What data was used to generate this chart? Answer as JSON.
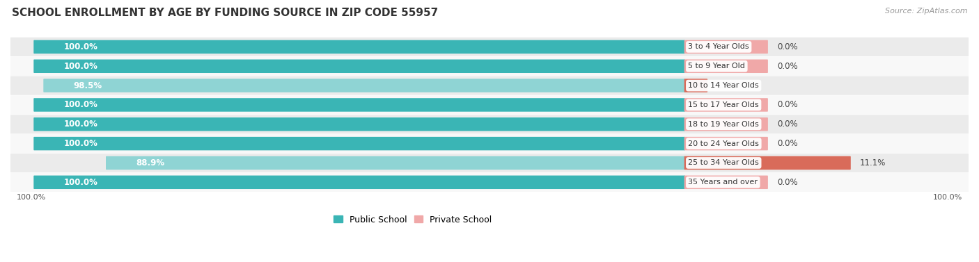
{
  "title": "SCHOOL ENROLLMENT BY AGE BY FUNDING SOURCE IN ZIP CODE 55957",
  "source": "Source: ZipAtlas.com",
  "categories": [
    "3 to 4 Year Olds",
    "5 to 9 Year Old",
    "10 to 14 Year Olds",
    "15 to 17 Year Olds",
    "18 to 19 Year Olds",
    "20 to 24 Year Olds",
    "25 to 34 Year Olds",
    "35 Years and over"
  ],
  "public_pct": [
    100.0,
    100.0,
    98.5,
    100.0,
    100.0,
    100.0,
    88.9,
    100.0
  ],
  "private_pct": [
    0.0,
    0.0,
    1.5,
    0.0,
    0.0,
    0.0,
    11.1,
    0.0
  ],
  "public_color_full": "#3ab5b5",
  "public_color_partial": "#8fd4d4",
  "private_color_light": "#f0a8a8",
  "private_color_full": "#d96b5a",
  "public_label": "Public School",
  "private_label": "Private School",
  "row_bg_odd": "#ebebeb",
  "row_bg_even": "#f8f8f8",
  "axis_label_left": "100.0%",
  "axis_label_right": "100.0%",
  "title_fontsize": 11,
  "source_fontsize": 8,
  "bar_label_fontsize": 8.5,
  "category_fontsize": 8,
  "axis_fontsize": 8,
  "pub_max_units": 55.0,
  "priv_fixed_units": 7.0,
  "priv_max_units": 14.0
}
